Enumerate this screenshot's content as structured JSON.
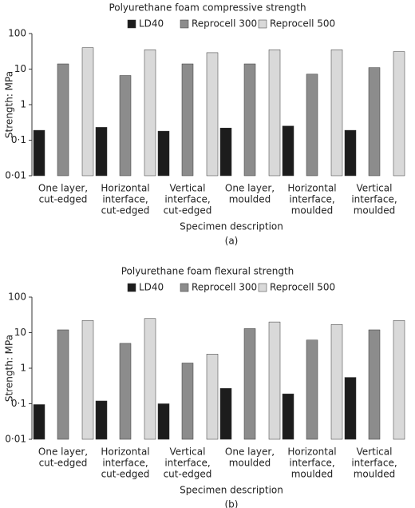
{
  "chart_data": [
    {
      "type": "bar",
      "title": "Polyurethane foam compressive strength",
      "xlabel": "Specimen description",
      "ylabel": "Strength: MPa",
      "caption": "(a)",
      "categories": [
        [
          "One layer,",
          "cut-edged"
        ],
        [
          "Horizontal",
          "interface,",
          "cut-edged"
        ],
        [
          "Vertical",
          "interface,",
          "cut-edged"
        ],
        [
          "One layer,",
          "moulded"
        ],
        [
          "Horizontal",
          "interface,",
          "moulded"
        ],
        [
          "Vertical",
          "interface,",
          "moulded"
        ]
      ],
      "series": [
        {
          "name": "LD40",
          "color": "#1c1c1c",
          "values": [
            0.19,
            0.23,
            0.18,
            0.22,
            0.25,
            0.19
          ]
        },
        {
          "name": "Reprocell 300",
          "color": "#8c8c8c",
          "values": [
            14,
            6.6,
            14,
            14,
            7.2,
            11
          ]
        },
        {
          "name": "Reprocell 500",
          "color": "#d9d9d9",
          "values": [
            40,
            35,
            29,
            35,
            35,
            31
          ]
        }
      ],
      "log_scale": true,
      "ylim": [
        0.01,
        100
      ],
      "yticks": [
        {
          "value": 0.01,
          "label": "0·01"
        },
        {
          "value": 0.1,
          "label": "0·1"
        },
        1,
        10,
        100
      ]
    },
    {
      "type": "bar",
      "title": "Polyurethane foam flexural strength",
      "xlabel": "Specimen description",
      "ylabel": "Strength: MPa",
      "caption": "(b)",
      "categories": [
        [
          "One layer,",
          "cut-edged"
        ],
        [
          "Horizontal",
          "interface,",
          "cut-edged"
        ],
        [
          "Vertical",
          "interface,",
          "cut-edged"
        ],
        [
          "One layer,",
          "moulded"
        ],
        [
          "Horizontal",
          "interface,",
          "moulded"
        ],
        [
          "Vertical",
          "interface,",
          "moulded"
        ]
      ],
      "series": [
        {
          "name": "LD40",
          "color": "#1c1c1c",
          "values": [
            0.095,
            0.12,
            0.1,
            0.27,
            0.19,
            0.55
          ]
        },
        {
          "name": "Reprocell 300",
          "color": "#8c8c8c",
          "values": [
            12,
            5,
            1.4,
            13,
            6.2,
            12
          ]
        },
        {
          "name": "Reprocell 500",
          "color": "#d9d9d9",
          "values": [
            22,
            25,
            2.5,
            20,
            17,
            22
          ]
        }
      ],
      "log_scale": true,
      "ylim": [
        0.01,
        100
      ],
      "yticks": [
        {
          "value": 0.01,
          "label": "0·01"
        },
        {
          "value": 0.1,
          "label": "0·1"
        },
        1,
        10,
        100
      ]
    }
  ]
}
